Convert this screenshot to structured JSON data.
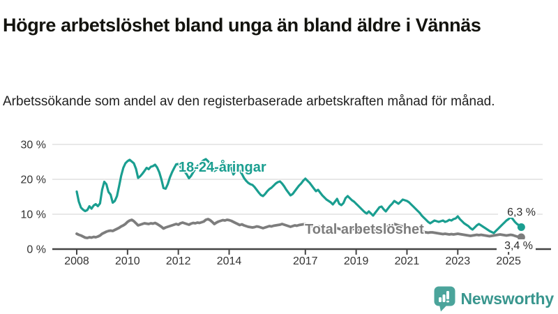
{
  "header": {
    "title": "Högre arbetslöshet bland unga än bland äldre i Vännäs",
    "subtitle": "Arbetssökande som andel av den registerbaserade arbetskraften månad för månad."
  },
  "chart_data": {
    "type": "line",
    "x_start": "2008-01",
    "x_end": "2025-07",
    "x_frequency": "monthly",
    "x_tick_labels": [
      "2008",
      "2010",
      "2012",
      "2014",
      "2017",
      "2019",
      "2021",
      "2023",
      "2025"
    ],
    "x_tick_years": [
      2008,
      2010,
      2012,
      2014,
      2017,
      2019,
      2021,
      2023,
      2025
    ],
    "y_ticks": [
      0,
      10,
      20,
      30
    ],
    "y_tick_labels": [
      "0 %",
      "10 %",
      "20 %",
      "30 %"
    ],
    "ylim": [
      0,
      32
    ],
    "grid": true,
    "legend_position": "inline-labels",
    "colors": {
      "youth": "#1a9e90",
      "total": "#7d7d7d",
      "axis": "#444444",
      "gridline": "#d9d9d9",
      "tick_text": "#333333"
    },
    "series": [
      {
        "name": "18-24-åringar",
        "color": "#1a9e90",
        "end_label": "6,3 %",
        "values": [
          16.5,
          13.6,
          11.9,
          11.3,
          10.9,
          11.2,
          12.3,
          11.6,
          12.5,
          12.9,
          12.3,
          13.1,
          17.0,
          19.3,
          18.6,
          16.4,
          15.6,
          13.3,
          13.8,
          15.2,
          18.0,
          21.0,
          23.3,
          24.6,
          25.2,
          25.6,
          25.1,
          24.6,
          23.0,
          20.4,
          20.9,
          21.6,
          22.4,
          23.3,
          22.9,
          23.6,
          23.8,
          24.2,
          23.4,
          22.0,
          20.0,
          17.5,
          17.3,
          18.6,
          20.5,
          22.0,
          23.2,
          24.3,
          24.4,
          23.6,
          22.8,
          22.2,
          21.4,
          20.3,
          21.0,
          22.0,
          23.0,
          23.8,
          24.3,
          25.0,
          25.5,
          25.8,
          25.2,
          24.5,
          23.5,
          22.4,
          22.8,
          23.5,
          24.0,
          24.6,
          24.2,
          24.0,
          24.0,
          23.2,
          21.4,
          22.3,
          23.0,
          22.4,
          21.6,
          20.4,
          19.6,
          19.0,
          18.6,
          18.4,
          17.8,
          17.0,
          16.2,
          15.5,
          15.2,
          15.8,
          16.6,
          17.2,
          17.6,
          18.2,
          18.8,
          19.2,
          19.4,
          18.8,
          18.0,
          17.0,
          16.2,
          15.4,
          15.8,
          16.6,
          17.4,
          18.2,
          18.8,
          19.6,
          20.2,
          19.6,
          19.0,
          18.2,
          17.4,
          16.6,
          17.0,
          16.2,
          15.4,
          14.8,
          14.2,
          13.8,
          13.4,
          12.8,
          13.6,
          14.4,
          13.0,
          12.6,
          13.2,
          14.6,
          15.2,
          14.6,
          14.0,
          13.6,
          13.0,
          12.4,
          11.8,
          11.2,
          10.6,
          10.2,
          10.8,
          10.2,
          9.6,
          10.4,
          11.2,
          12.0,
          12.2,
          11.4,
          10.8,
          11.6,
          12.4,
          13.0,
          13.8,
          13.4,
          13.0,
          13.6,
          14.2,
          14.0,
          13.8,
          13.4,
          12.8,
          12.2,
          11.6,
          11.0,
          10.4,
          9.6,
          9.0,
          8.4,
          7.8,
          7.4,
          7.8,
          8.2,
          8.0,
          7.8,
          8.0,
          8.2,
          7.8,
          8.0,
          8.4,
          8.2,
          8.6,
          8.8,
          9.4,
          8.6,
          8.0,
          7.4,
          7.0,
          6.6,
          6.0,
          5.6,
          6.2,
          6.8,
          7.2,
          6.8,
          6.4,
          6.0,
          5.6,
          5.2,
          4.9,
          4.6,
          5.2,
          5.8,
          6.4,
          7.0,
          7.6,
          8.2,
          8.6,
          9.2,
          8.6,
          7.8,
          7.2,
          6.8,
          6.3
        ]
      },
      {
        "name": "Total arbetslöshet",
        "color": "#7d7d7d",
        "end_label": "3,4 %",
        "values": [
          4.4,
          4.1,
          3.9,
          3.6,
          3.3,
          3.2,
          3.4,
          3.3,
          3.5,
          3.4,
          3.6,
          3.9,
          4.4,
          4.7,
          5.0,
          5.2,
          5.3,
          5.2,
          5.5,
          5.8,
          6.1,
          6.5,
          6.8,
          7.2,
          7.8,
          8.2,
          8.4,
          8.0,
          7.4,
          6.8,
          7.0,
          7.2,
          7.4,
          7.3,
          7.2,
          7.4,
          7.3,
          7.5,
          7.2,
          6.8,
          6.4,
          5.9,
          6.2,
          6.4,
          6.6,
          6.8,
          7.0,
          7.2,
          7.0,
          7.4,
          7.6,
          7.4,
          7.2,
          7.0,
          7.3,
          7.5,
          7.4,
          7.6,
          7.5,
          7.7,
          7.9,
          8.4,
          8.6,
          8.3,
          7.8,
          7.2,
          7.6,
          7.9,
          8.1,
          8.3,
          8.2,
          8.4,
          8.3,
          8.1,
          7.8,
          7.5,
          7.2,
          6.9,
          7.1,
          6.8,
          6.6,
          6.4,
          6.3,
          6.2,
          6.3,
          6.5,
          6.4,
          6.2,
          6.0,
          6.2,
          6.4,
          6.6,
          6.5,
          6.7,
          6.8,
          6.9,
          7.0,
          7.2,
          7.0,
          6.8,
          6.6,
          6.4,
          6.6,
          6.8,
          6.7,
          6.9,
          7.0,
          7.1,
          7.2,
          7.0,
          6.9,
          6.7,
          6.5,
          6.3,
          6.5,
          6.4,
          6.2,
          6.1,
          6.0,
          6.2,
          6.0,
          5.9,
          6.1,
          6.0,
          5.8,
          5.6,
          5.8,
          6.0,
          5.9,
          5.8,
          5.7,
          5.8,
          5.7,
          5.6,
          5.5,
          5.4,
          5.3,
          5.2,
          5.4,
          5.3,
          5.2,
          5.4,
          5.5,
          5.7,
          5.8,
          5.7,
          6.0,
          6.5,
          6.8,
          7.0,
          7.2,
          7.0,
          6.8,
          6.6,
          6.5,
          6.4,
          6.3,
          6.2,
          6.0,
          5.8,
          5.6,
          5.4,
          5.2,
          5.0,
          4.9,
          4.8,
          4.7,
          4.8,
          4.8,
          4.7,
          4.6,
          4.5,
          4.4,
          4.3,
          4.4,
          4.3,
          4.2,
          4.3,
          4.2,
          4.3,
          4.4,
          4.3,
          4.2,
          4.1,
          4.0,
          3.9,
          3.8,
          3.9,
          4.0,
          4.1,
          4.0,
          4.1,
          4.0,
          3.9,
          3.8,
          3.7,
          3.8,
          3.9,
          4.0,
          4.1,
          4.2,
          4.1,
          4.0,
          3.9,
          4.0,
          4.1,
          4.0,
          3.8,
          3.6,
          3.5,
          3.4
        ]
      }
    ]
  },
  "footer": {
    "brand": "Newsworthy",
    "brand_color": "#39968e",
    "logo_icon": "bar-chart-speech-bubble-icon"
  }
}
